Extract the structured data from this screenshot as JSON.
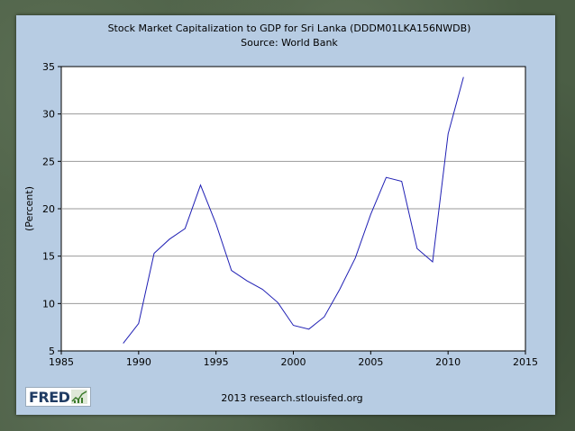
{
  "chart_data": {
    "type": "line",
    "title": "Stock Market Capitalization to GDP for Sri Lanka (DDDM01LKA156NWDB)",
    "subtitle": "Source: World Bank",
    "xlabel": "",
    "ylabel": "(Percent)",
    "xlim": [
      1985,
      2015
    ],
    "ylim": [
      5,
      35
    ],
    "xticks": [
      1985,
      1990,
      1995,
      2000,
      2005,
      2010,
      2015
    ],
    "yticks": [
      5,
      10,
      15,
      20,
      25,
      30,
      35
    ],
    "grid": "horizontal",
    "legend": "none",
    "series": [
      {
        "x": [
          1989,
          1990,
          1991,
          1992,
          1993,
          1994,
          1995,
          1996,
          1997,
          1998,
          1999,
          2000,
          2001,
          2002,
          2003,
          2004,
          2005,
          2006,
          2007,
          2008,
          2009,
          2010,
          2011
        ],
        "values": [
          5.8,
          7.9,
          15.3,
          16.8,
          17.9,
          22.5,
          18.4,
          13.5,
          12.4,
          11.5,
          10.1,
          7.7,
          7.3,
          8.6,
          11.5,
          14.8,
          19.4,
          23.3,
          22.9,
          15.8,
          14.4,
          27.9,
          33.9
        ]
      }
    ],
    "line_color": "#1f1fb4"
  },
  "footer": {
    "credit": "2013 research.stlouisfed.org",
    "logo_text": "FRED"
  }
}
